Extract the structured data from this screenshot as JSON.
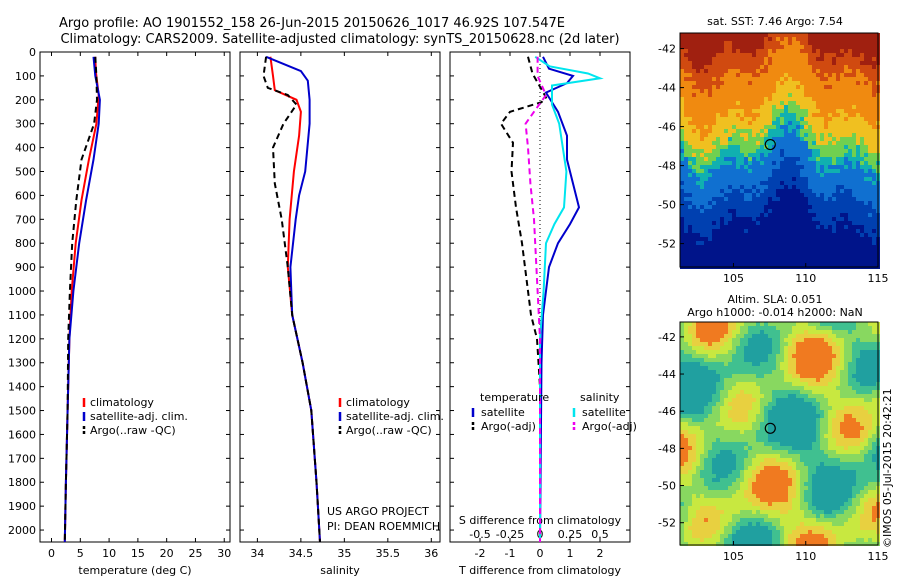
{
  "header": {
    "title_line1": "Argo profile: AO 1901552_158 26-Jun-2015 20150626_1017 46.92S 107.547E",
    "title_line2": "Climatology: CARS2009. Satellite-adjusted climatology: synTS_20150628.nc (2d later)"
  },
  "credits": {
    "project": "US ARGO PROJECT",
    "pi": "PI: DEAN ROEMMICH",
    "imos": "©IMOS 05-Jul-2015 20:42:21"
  },
  "colors": {
    "climatology": "#ff0000",
    "satellite": "#0000cc",
    "argo": "#000000",
    "salinity_sat": "#00e5ee",
    "salinity_argo": "#ee00ee"
  },
  "chart_data": [
    {
      "type": "line",
      "xlabel": "temperature (deg C)",
      "xlim": [
        -2,
        31
      ],
      "xticks": [
        "0",
        "5",
        "10",
        "15",
        "20",
        "25",
        "30"
      ],
      "ylim": [
        0,
        2050
      ],
      "yticks": [
        "0",
        "100",
        "200",
        "300",
        "400",
        "500",
        "600",
        "700",
        "800",
        "900",
        "1000",
        "1100",
        "1200",
        "1300",
        "1400",
        "1500",
        "1600",
        "1700",
        "1800",
        "1900",
        "2000"
      ],
      "legend": [
        "climatology",
        "satellite-adj. clim.",
        "Argo(..raw -QC)"
      ],
      "series": [
        {
          "name": "climatology",
          "style": "solid",
          "color": "#ff0000",
          "points": [
            [
              7.6,
              20
            ],
            [
              7.7,
              80
            ],
            [
              8.2,
              180
            ],
            [
              7.8,
              300
            ],
            [
              6.5,
              450
            ],
            [
              5.2,
              620
            ],
            [
              4.2,
              800
            ],
            [
              3.5,
              1000
            ],
            [
              3.1,
              1200
            ],
            [
              2.8,
              1500
            ],
            [
              2.5,
              1800
            ],
            [
              2.3,
              2050
            ]
          ]
        },
        {
          "name": "satellite-adj. clim.",
          "style": "solid",
          "color": "#0000cc",
          "points": [
            [
              7.3,
              20
            ],
            [
              7.6,
              100
            ],
            [
              8.4,
              200
            ],
            [
              8.2,
              300
            ],
            [
              7.3,
              450
            ],
            [
              6.0,
              620
            ],
            [
              4.8,
              800
            ],
            [
              3.8,
              1000
            ],
            [
              3.1,
              1200
            ],
            [
              2.8,
              1500
            ],
            [
              2.5,
              1800
            ],
            [
              2.3,
              2050
            ]
          ]
        },
        {
          "name": "Argo(..raw -QC)",
          "style": "dashed",
          "color": "#000000",
          "points": [
            [
              7.6,
              20
            ],
            [
              7.8,
              100
            ],
            [
              7.9,
              200
            ],
            [
              7.4,
              300
            ],
            [
              5.2,
              450
            ],
            [
              4.3,
              620
            ],
            [
              3.6,
              800
            ],
            [
              3.2,
              1000
            ],
            [
              2.9,
              1200
            ],
            [
              2.8,
              1500
            ],
            [
              2.5,
              1800
            ],
            [
              2.3,
              2050
            ]
          ]
        }
      ]
    },
    {
      "type": "line",
      "xlabel": "salinity",
      "xlim": [
        33.8,
        36.1
      ],
      "xticks": [
        "34",
        "34.5",
        "35",
        "35.5",
        "36"
      ],
      "ylim": [
        0,
        2050
      ],
      "legend": [
        "climatology",
        "satellite-adj. clim.",
        "Argo(..raw -QC)"
      ],
      "series": [
        {
          "name": "climatology",
          "style": "solid",
          "color": "#ff0000",
          "points": [
            [
              34.15,
              20
            ],
            [
              34.18,
              100
            ],
            [
              34.2,
              160
            ],
            [
              34.45,
              200
            ],
            [
              34.5,
              250
            ],
            [
              34.48,
              350
            ],
            [
              34.42,
              500
            ],
            [
              34.37,
              700
            ],
            [
              34.35,
              900
            ],
            [
              34.4,
              1100
            ],
            [
              34.52,
              1300
            ],
            [
              34.62,
              1500
            ],
            [
              34.68,
              1800
            ],
            [
              34.72,
              2050
            ]
          ]
        },
        {
          "name": "satellite-adj. clim.",
          "style": "solid",
          "color": "#0000cc",
          "points": [
            [
              34.1,
              20
            ],
            [
              34.5,
              80
            ],
            [
              34.58,
              120
            ],
            [
              34.6,
              200
            ],
            [
              34.6,
              300
            ],
            [
              34.55,
              500
            ],
            [
              34.48,
              600
            ],
            [
              34.44,
              700
            ],
            [
              34.38,
              900
            ],
            [
              34.4,
              1100
            ],
            [
              34.52,
              1300
            ],
            [
              34.62,
              1500
            ],
            [
              34.68,
              1800
            ],
            [
              34.72,
              2050
            ]
          ]
        },
        {
          "name": "Argo(..raw -QC)",
          "style": "dashed",
          "color": "#000000",
          "points": [
            [
              34.1,
              20
            ],
            [
              34.07,
              100
            ],
            [
              34.12,
              150
            ],
            [
              34.35,
              180
            ],
            [
              34.45,
              220
            ],
            [
              34.3,
              300
            ],
            [
              34.18,
              400
            ],
            [
              34.2,
              550
            ],
            [
              34.28,
              700
            ],
            [
              34.35,
              900
            ],
            [
              34.4,
              1100
            ],
            [
              34.52,
              1300
            ],
            [
              34.62,
              1500
            ],
            [
              34.68,
              1800
            ],
            [
              34.72,
              2050
            ]
          ]
        }
      ]
    },
    {
      "type": "line",
      "xlabel": "T difference from climatology",
      "xlabel_top": "S difference from climatology",
      "xlim": [
        -3,
        3
      ],
      "xticks": [
        "-2",
        "-1",
        "0",
        "1",
        "2"
      ],
      "xticks_top": [
        "-0.5",
        "-0.25",
        "0",
        "0.25",
        "0.5"
      ],
      "ylim": [
        0,
        2050
      ],
      "legend_left": {
        "title": "temperature",
        "items": [
          "satellite",
          "Argo(-adj)"
        ]
      },
      "legend_right": {
        "title": "salinity",
        "items": [
          "satellite",
          "Argo(-adj)"
        ]
      },
      "series": [
        {
          "name": "T satellite",
          "style": "solid",
          "color": "#0000cc",
          "points": [
            [
              0.1,
              20
            ],
            [
              0.3,
              70
            ],
            [
              1.1,
              100
            ],
            [
              0.9,
              130
            ],
            [
              0.2,
              170
            ],
            [
              0.6,
              250
            ],
            [
              0.9,
              350
            ],
            [
              0.9,
              450
            ],
            [
              1.1,
              550
            ],
            [
              1.3,
              650
            ],
            [
              1.0,
              720
            ],
            [
              0.6,
              800
            ],
            [
              0.3,
              900
            ],
            [
              0.1,
              1100
            ],
            [
              0.05,
              1300
            ],
            [
              0,
              2050
            ]
          ]
        },
        {
          "name": "T Argo(-adj)",
          "style": "dashed",
          "color": "#000000",
          "points": [
            [
              -0.4,
              20
            ],
            [
              -0.25,
              90
            ],
            [
              0.2,
              190
            ],
            [
              0.05,
              210
            ],
            [
              -1.0,
              250
            ],
            [
              -1.3,
              300
            ],
            [
              -0.9,
              380
            ],
            [
              -0.95,
              500
            ],
            [
              -0.8,
              650
            ],
            [
              -0.6,
              800
            ],
            [
              -0.45,
              950
            ],
            [
              -0.3,
              1100
            ],
            [
              -0.1,
              1200
            ],
            [
              0,
              1400
            ],
            [
              0,
              2050
            ]
          ]
        },
        {
          "name": "S satellite",
          "style": "solid",
          "color": "#00e5ee",
          "points": [
            [
              -0.04,
              20
            ],
            [
              0.08,
              60
            ],
            [
              0.4,
              90
            ],
            [
              0.5,
              110
            ],
            [
              0.1,
              140
            ],
            [
              0.1,
              220
            ],
            [
              0.16,
              300
            ],
            [
              0.19,
              400
            ],
            [
              0.22,
              500
            ],
            [
              0.2,
              650
            ],
            [
              0.12,
              720
            ],
            [
              0.05,
              800
            ],
            [
              0.03,
              1000
            ],
            [
              0.0,
              1200
            ],
            [
              0.0,
              2050
            ]
          ]
        },
        {
          "name": "S Argo(-adj)",
          "style": "dashed",
          "color": "#ee00ee",
          "points": [
            [
              -0.02,
              20
            ],
            [
              -0.02,
              100
            ],
            [
              0.05,
              180
            ],
            [
              -0.05,
              250
            ],
            [
              -0.12,
              300
            ],
            [
              -0.1,
              400
            ],
            [
              -0.08,
              550
            ],
            [
              -0.05,
              700
            ],
            [
              -0.03,
              900
            ],
            [
              0.0,
              1200
            ],
            [
              0.0,
              2050
            ]
          ]
        }
      ]
    }
  ],
  "map_sst": {
    "title": "sat. SST: 7.46 Argo: 7.54",
    "yticks": [
      "-42",
      "-44",
      "-46",
      "-48",
      "-50",
      "-52"
    ],
    "xticks": [
      "105",
      "110",
      "115"
    ],
    "argo_lon": 107.547,
    "argo_lat": -46.92
  },
  "map_sla": {
    "title_line1": "Altim. SLA: 0.051",
    "title_line2": "Argo h1000: -0.014 h2000: NaN",
    "yticks": [
      "-42",
      "-44",
      "-46",
      "-48",
      "-50",
      "-52"
    ],
    "xticks": [
      "105",
      "110",
      "115"
    ],
    "argo_lon": 107.547,
    "argo_lat": -46.92
  }
}
